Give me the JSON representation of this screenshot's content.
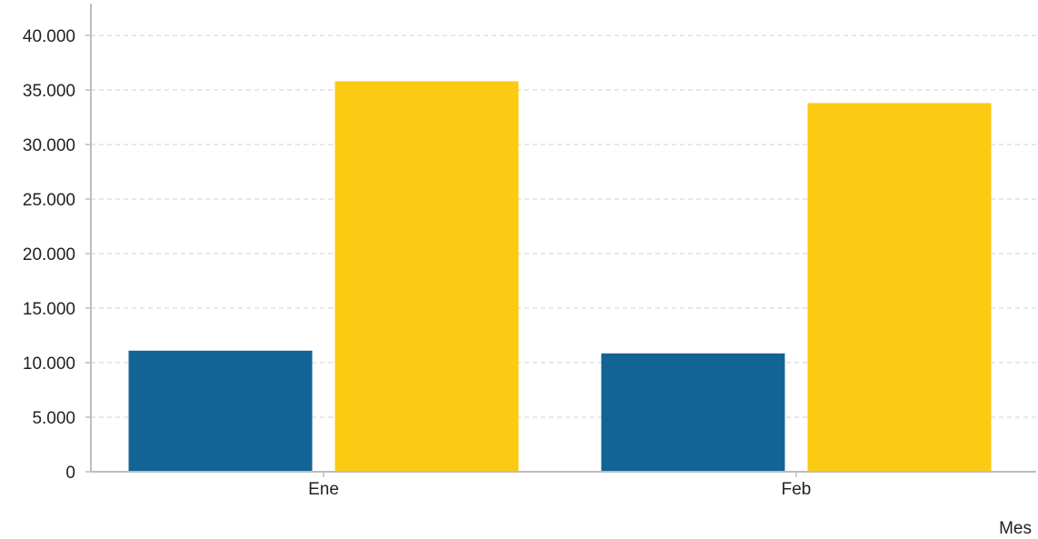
{
  "chart_data": {
    "type": "bar",
    "categories": [
      "Ene",
      "Feb"
    ],
    "series": [
      {
        "values": [
          11100,
          10850
        ],
        "color": "#136496"
      },
      {
        "values": [
          35800,
          33800
        ],
        "color": "#fcca12"
      }
    ],
    "title": "",
    "xlabel": "Mes",
    "ylabel": "",
    "ylim": [
      0,
      40000
    ],
    "yticks": [
      0,
      5000,
      10000,
      15000,
      20000,
      25000,
      30000,
      35000,
      40000
    ],
    "ytick_labels": [
      "0",
      "5.000",
      "10.000",
      "15.000",
      "20.000",
      "25.000",
      "30.000",
      "35.000",
      "40.000"
    ],
    "grid": true,
    "legend": "none"
  }
}
